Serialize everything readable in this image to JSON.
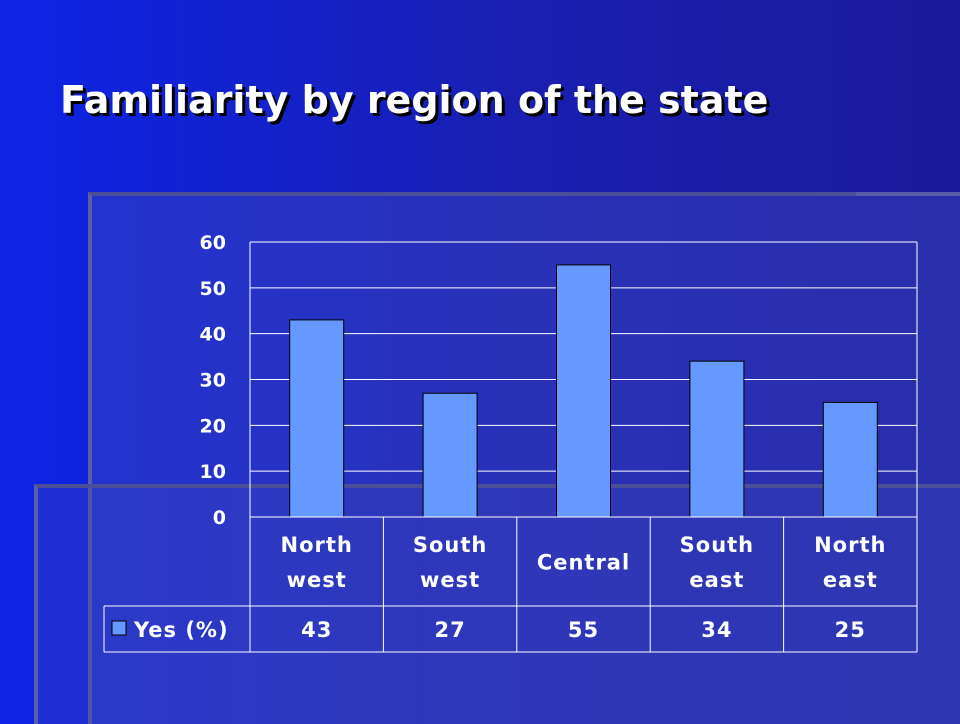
{
  "slide": {
    "title": "Familiarity by region of the state"
  },
  "chart_data": {
    "type": "bar",
    "categories": [
      [
        "North",
        "west"
      ],
      [
        "South",
        "west"
      ],
      [
        "Central"
      ],
      [
        "South",
        "east"
      ],
      [
        "North",
        "east"
      ]
    ],
    "series": [
      {
        "name": "Yes (%)",
        "values": [
          43,
          27,
          55,
          34,
          25
        ]
      }
    ],
    "y_ticks": [
      "0",
      "10",
      "20",
      "30",
      "40",
      "50",
      "60"
    ],
    "ylim": [
      0,
      60
    ],
    "grid": true,
    "data_table": true,
    "legend": "in data table",
    "colors": {
      "bar": "#6699ff",
      "bar_stroke": "#000000",
      "grid": "#ffffff",
      "text": "#ffffff"
    }
  }
}
